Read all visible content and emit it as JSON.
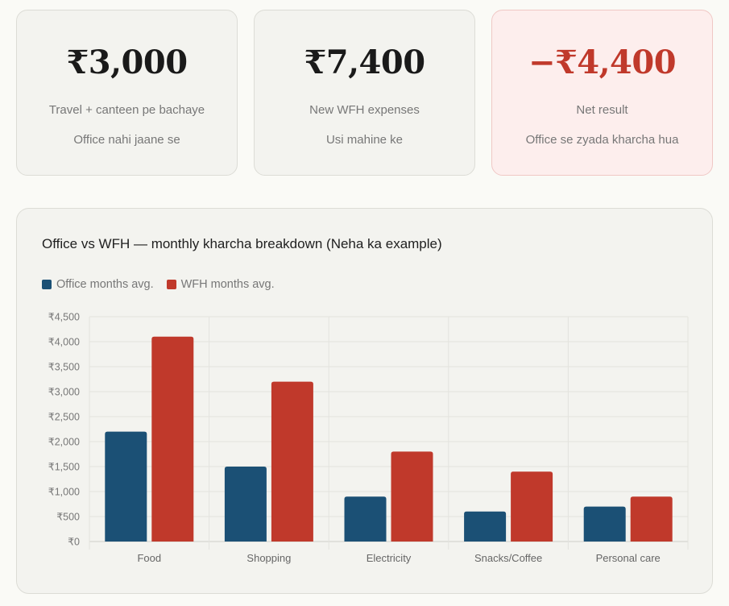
{
  "cards": [
    {
      "amount": "₹3,000",
      "label": "Travel + canteen pe bachaye",
      "sub": "Office nahi jaane se"
    },
    {
      "amount": "₹7,400",
      "label": "New WFH expenses",
      "sub": "Usi mahine ke"
    },
    {
      "amount": "−₹4,400",
      "label": "Net result",
      "sub": "Office se zyada kharcha hua"
    }
  ],
  "colors": {
    "office": "#1b5075",
    "wfh": "#c0392b",
    "negative": "#c0392b"
  },
  "chart_data": {
    "type": "bar",
    "title": "Office vs WFH — monthly kharcha breakdown (Neha ka example)",
    "categories": [
      "Food",
      "Shopping",
      "Electricity",
      "Snacks/Coffee",
      "Personal care"
    ],
    "series": [
      {
        "name": "Office months avg.",
        "values": [
          2200,
          1500,
          900,
          600,
          700
        ]
      },
      {
        "name": "WFH months avg.",
        "values": [
          4100,
          3200,
          1800,
          1400,
          900
        ]
      }
    ],
    "y_ticks": [
      "₹0",
      "₹500",
      "₹1,000",
      "₹1,500",
      "₹2,000",
      "₹2,500",
      "₹3,000",
      "₹3,500",
      "₹4,000",
      "₹4,500"
    ],
    "ylim": [
      0,
      4500
    ],
    "grid": true,
    "legend_position": "top-left"
  }
}
